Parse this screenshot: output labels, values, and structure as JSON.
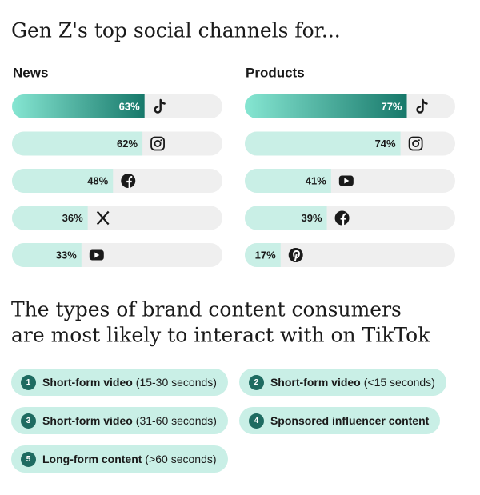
{
  "title": "Gen Z's top social channels for...",
  "chart_data": [
    {
      "type": "bar",
      "title": "News",
      "values": [
        63,
        62,
        48,
        36,
        33
      ],
      "value_labels": [
        "63%",
        "62%",
        "48%",
        "36%",
        "33%"
      ],
      "xlim": [
        0,
        100
      ],
      "color": "#c9efe6",
      "top_color": [
        "#86e6d2",
        "#17786a"
      ]
    },
    {
      "type": "bar",
      "title": "Products",
      "values": [
        77,
        74,
        41,
        39,
        17
      ],
      "value_labels": [
        "77%",
        "74%",
        "41%",
        "39%",
        "17%"
      ],
      "xlim": [
        0,
        100
      ],
      "color": "#c9efe6",
      "top_color": [
        "#86e6d2",
        "#17786a"
      ]
    }
  ],
  "content_heading": [
    "The types of brand content consumers",
    "are most likely to interact with on TikTok"
  ],
  "content_types": [
    {
      "rank": "1",
      "label": "Short-form video",
      "detail": "(15-30 seconds)"
    },
    {
      "rank": "2",
      "label": "Short-form video",
      "detail": "(<15 seconds)"
    },
    {
      "rank": "3",
      "label": "Short-form video",
      "detail": "(31-60 seconds)"
    },
    {
      "rank": "4",
      "label": "Sponsored influencer content"
    },
    {
      "rank": "5",
      "label": "Long-form content",
      "detail": "(>60 seconds)"
    }
  ]
}
